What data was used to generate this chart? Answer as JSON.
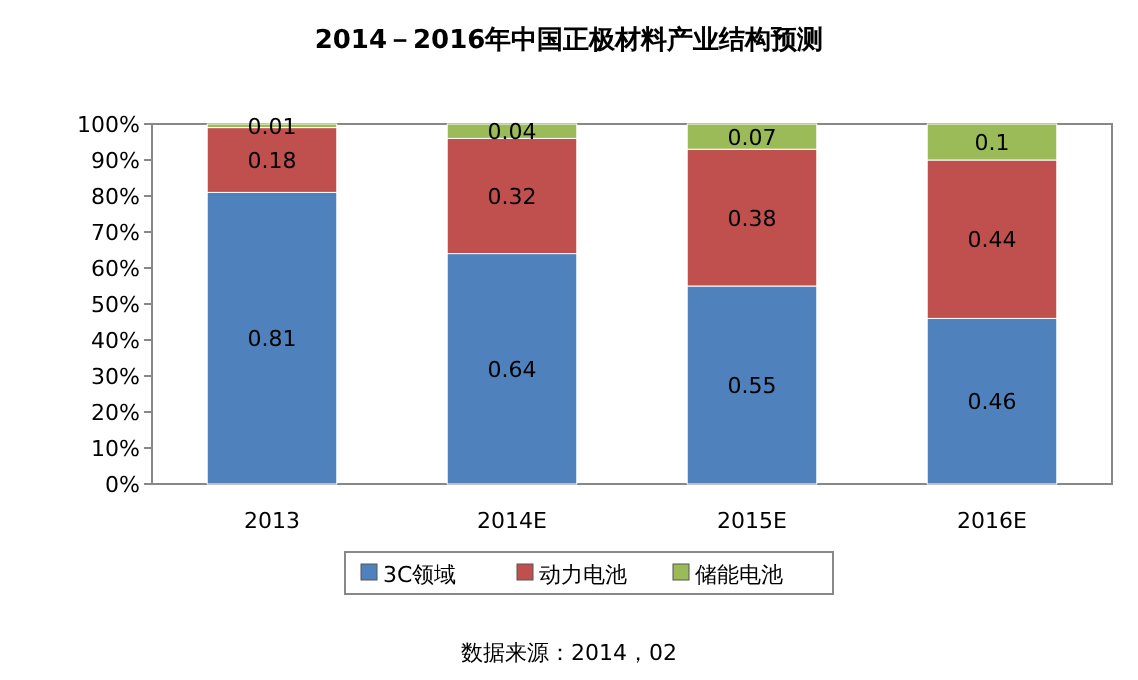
{
  "chart_data": {
    "type": "bar",
    "title": "2014－2016年中国正极材料产业结构预测",
    "categories": [
      "2013",
      "2014E",
      "2015E",
      "2016E"
    ],
    "stacked": true,
    "series": [
      {
        "name": "3C领域",
        "color": "#4f81bd",
        "values": [
          0.81,
          0.64,
          0.55,
          0.46
        ]
      },
      {
        "name": "动力电池",
        "color": "#c0504d",
        "values": [
          0.18,
          0.32,
          0.38,
          0.44
        ]
      },
      {
        "name": "储能电池",
        "color": "#9bbb59",
        "values": [
          0.01,
          0.04,
          0.07,
          0.1
        ]
      }
    ],
    "data_labels": true,
    "ylim": [
      0,
      1
    ],
    "yticks": [
      {
        "value": 0,
        "label": "0%"
      },
      {
        "value": 0.1,
        "label": "10%"
      },
      {
        "value": 0.2,
        "label": "20%"
      },
      {
        "value": 0.3,
        "label": "30%"
      },
      {
        "value": 0.4,
        "label": "40%"
      },
      {
        "value": 0.5,
        "label": "50%"
      },
      {
        "value": 0.6,
        "label": "60%"
      },
      {
        "value": 0.7,
        "label": "70%"
      },
      {
        "value": 0.8,
        "label": "80%"
      },
      {
        "value": 0.9,
        "label": "90%"
      },
      {
        "value": 1,
        "label": "100%"
      }
    ],
    "legend": "bottom",
    "annotations": [
      "数据来源：2014，02"
    ]
  }
}
